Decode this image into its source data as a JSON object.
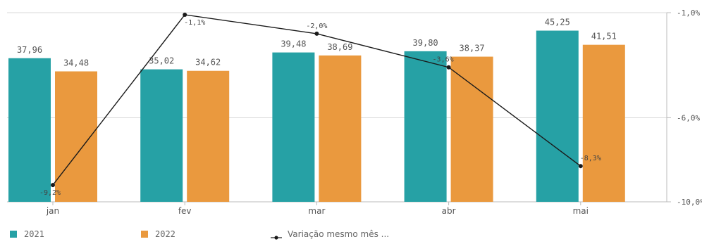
{
  "chart_data": {
    "type": "bar",
    "categories": [
      "jan",
      "fev",
      "mar",
      "abr",
      "mai"
    ],
    "series": [
      {
        "name": "2021",
        "type": "bar",
        "values": [
          37.96,
          35.02,
          39.48,
          39.8,
          45.25
        ],
        "labels": [
          "37,96",
          "35,02",
          "39,48",
          "39,80",
          "45,25"
        ],
        "color": "#26a1a5"
      },
      {
        "name": "2022",
        "type": "bar",
        "values": [
          34.48,
          34.62,
          38.69,
          38.37,
          41.51
        ],
        "labels": [
          "34,48",
          "34,62",
          "38,69",
          "38,37",
          "41,51"
        ],
        "color": "#ea993e"
      },
      {
        "name": "Variação mesmo mês ...",
        "type": "line",
        "axis": "right",
        "values": [
          -9.2,
          -1.1,
          -2.0,
          -3.6,
          -8.3
        ],
        "labels": [
          "-9,2%",
          "-1,1%",
          "-2,0%",
          "-3,6%",
          "-8,3%"
        ],
        "color": "#1a1a1a"
      }
    ],
    "left_axis": {
      "range": [
        0,
        50
      ],
      "visible": false
    },
    "right_axis": {
      "range": [
        -10.0,
        -1.0
      ],
      "ticks": [
        -1.0,
        -6.0,
        -10.0
      ],
      "tick_labels": [
        "-1,0%",
        "-6,0%",
        "-10,0%"
      ]
    },
    "grid": true,
    "legend_position": "bottom-left"
  },
  "legend": {
    "items": [
      {
        "label": "2021",
        "color": "#26a1a5"
      },
      {
        "label": "2022",
        "color": "#ea993e"
      },
      {
        "label": "Variação mesmo mês ...",
        "color": "#1a1a1a"
      }
    ]
  }
}
